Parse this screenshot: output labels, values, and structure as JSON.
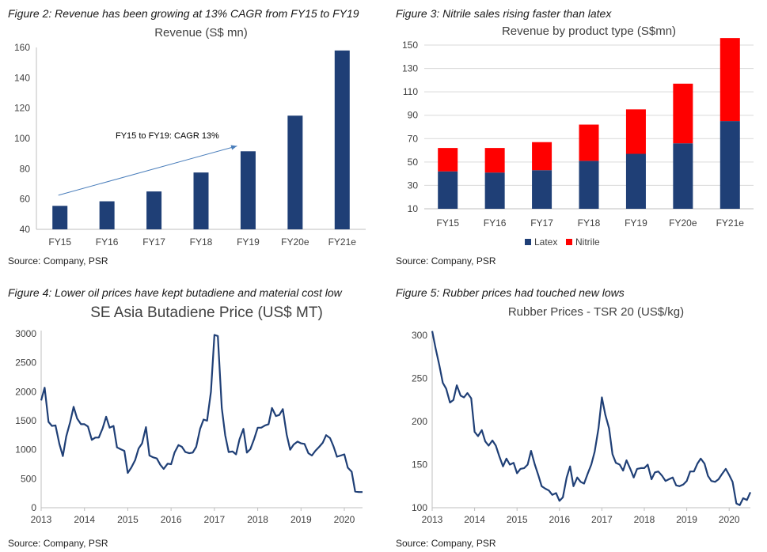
{
  "colors": {
    "navy": "#1f3f76",
    "red": "#ff0000",
    "axis": "#bfbfbf",
    "grid": "#d9d9d9",
    "arrow": "#4a7ebb"
  },
  "panels": [
    {
      "caption": "Figure 2: Revenue has been growing at 13% CAGR from FY15 to FY19",
      "source": "Source: Company, PSR"
    },
    {
      "caption": "Figure 3: Nitrile sales rising faster than latex",
      "source": "Source: Company, PSR"
    },
    {
      "caption": "Figure 4: Lower oil prices have kept butadiene and material cost low",
      "source": "Source: Company, PSR"
    },
    {
      "caption": "Figure 5: Rubber prices had touched new lows",
      "source": "Source: Company, PSR"
    }
  ],
  "chart_data": [
    {
      "type": "bar",
      "title": "Revenue (S$ mn)",
      "categories": [
        "FY15",
        "FY16",
        "FY17",
        "FY18",
        "FY19",
        "FY20e",
        "FY21e"
      ],
      "values": [
        55.5,
        58.5,
        65,
        77.5,
        91.5,
        115,
        158
      ],
      "ylim": [
        40,
        160
      ],
      "yticks": [
        "40",
        "60",
        "80",
        "100",
        "120",
        "140",
        "160"
      ],
      "grid": false,
      "annotation": "FY15 to FY19: CAGR 13%"
    },
    {
      "type": "bar",
      "stacked": true,
      "title": "Revenue by product type (S$mn)",
      "categories": [
        "FY15",
        "FY16",
        "FY17",
        "FY18",
        "FY19",
        "FY20e",
        "FY21e"
      ],
      "series": [
        {
          "name": "Latex",
          "values": [
            32,
            31,
            33,
            41,
            47,
            56,
            75
          ],
          "color": "#1f3f76"
        },
        {
          "name": "Nitrile",
          "values": [
            20,
            21,
            24,
            31,
            38,
            51,
            71
          ],
          "color": "#ff0000"
        }
      ],
      "ylim": [
        10,
        150
      ],
      "yticks": [
        "10",
        "30",
        "50",
        "70",
        "90",
        "110",
        "130",
        "150"
      ],
      "grid": true,
      "legend": "bottom"
    },
    {
      "type": "line",
      "title": "SE Asia Butadiene Price (US$  MT)",
      "x": [
        2013.0,
        2013.08,
        2013.17,
        2013.25,
        2013.33,
        2013.42,
        2013.5,
        2013.58,
        2013.67,
        2013.75,
        2013.83,
        2013.92,
        2014.0,
        2014.08,
        2014.17,
        2014.25,
        2014.33,
        2014.42,
        2014.5,
        2014.58,
        2014.67,
        2014.75,
        2014.83,
        2014.92,
        2015.0,
        2015.08,
        2015.17,
        2015.25,
        2015.33,
        2015.42,
        2015.5,
        2015.58,
        2015.67,
        2015.75,
        2015.83,
        2015.92,
        2016.0,
        2016.08,
        2016.17,
        2016.25,
        2016.33,
        2016.42,
        2016.5,
        2016.58,
        2016.67,
        2016.75,
        2016.83,
        2016.92,
        2017.0,
        2017.08,
        2017.17,
        2017.25,
        2017.33,
        2017.42,
        2017.5,
        2017.58,
        2017.67,
        2017.75,
        2017.83,
        2017.92,
        2018.0,
        2018.08,
        2018.17,
        2018.25,
        2018.33,
        2018.42,
        2018.5,
        2018.58,
        2018.67,
        2018.75,
        2018.83,
        2018.92,
        2019.0,
        2019.08,
        2019.17,
        2019.25,
        2019.33,
        2019.42,
        2019.5,
        2019.58,
        2019.67,
        2019.75,
        2019.83,
        2019.92,
        2020.0,
        2020.08,
        2020.17,
        2020.25,
        2020.33,
        2020.42
      ],
      "y": [
        1850,
        2070,
        1480,
        1410,
        1420,
        1100,
        890,
        1230,
        1480,
        1740,
        1540,
        1440,
        1440,
        1400,
        1170,
        1210,
        1210,
        1370,
        1570,
        1380,
        1410,
        1040,
        1010,
        980,
        600,
        690,
        820,
        1020,
        1110,
        1390,
        900,
        870,
        850,
        740,
        670,
        760,
        750,
        950,
        1080,
        1050,
        960,
        940,
        950,
        1050,
        1360,
        1520,
        1500,
        2000,
        2980,
        2960,
        1720,
        1250,
        960,
        970,
        920,
        1180,
        1360,
        950,
        1010,
        1190,
        1380,
        1380,
        1420,
        1440,
        1720,
        1580,
        1600,
        1700,
        1260,
        1000,
        1090,
        1140,
        1110,
        1100,
        940,
        900,
        980,
        1050,
        1120,
        1250,
        1200,
        1060,
        880,
        900,
        920,
        690,
        620,
        280,
        270,
        270
      ],
      "xlim": [
        2013,
        2020.42
      ],
      "ylim": [
        0,
        3000
      ],
      "xticks": [
        "2013",
        "2014",
        "2015",
        "2016",
        "2017",
        "2018",
        "2019",
        "2020"
      ],
      "yticks": [
        "0",
        "500",
        "1000",
        "1500",
        "2000",
        "2500",
        "3000"
      ],
      "grid": false
    },
    {
      "type": "line",
      "title": "Rubber Prices - TSR 20 (US$/kg)",
      "x": [
        2013.0,
        2013.08,
        2013.17,
        2013.25,
        2013.33,
        2013.42,
        2013.5,
        2013.58,
        2013.67,
        2013.75,
        2013.83,
        2013.92,
        2014.0,
        2014.08,
        2014.17,
        2014.25,
        2014.33,
        2014.42,
        2014.5,
        2014.58,
        2014.67,
        2014.75,
        2014.83,
        2014.92,
        2015.0,
        2015.08,
        2015.17,
        2015.25,
        2015.33,
        2015.42,
        2015.5,
        2015.58,
        2015.67,
        2015.75,
        2015.83,
        2015.92,
        2016.0,
        2016.08,
        2016.17,
        2016.25,
        2016.33,
        2016.42,
        2016.5,
        2016.58,
        2016.67,
        2016.75,
        2016.83,
        2016.92,
        2017.0,
        2017.08,
        2017.17,
        2017.25,
        2017.33,
        2017.42,
        2017.5,
        2017.58,
        2017.67,
        2017.75,
        2017.83,
        2017.92,
        2018.0,
        2018.08,
        2018.17,
        2018.25,
        2018.33,
        2018.42,
        2018.5,
        2018.58,
        2018.67,
        2018.75,
        2018.83,
        2018.92,
        2019.0,
        2019.08,
        2019.17,
        2019.25,
        2019.33,
        2019.42,
        2019.5,
        2019.58,
        2019.67,
        2019.75,
        2019.83,
        2019.92,
        2020.0,
        2020.08,
        2020.17,
        2020.25,
        2020.33,
        2020.42,
        2020.5
      ],
      "y": [
        305,
        285,
        265,
        245,
        238,
        222,
        225,
        242,
        230,
        228,
        233,
        227,
        188,
        183,
        190,
        177,
        172,
        178,
        172,
        160,
        148,
        157,
        150,
        152,
        140,
        145,
        146,
        150,
        166,
        150,
        138,
        125,
        122,
        120,
        115,
        117,
        108,
        112,
        135,
        148,
        125,
        135,
        130,
        128,
        140,
        150,
        165,
        192,
        228,
        208,
        192,
        162,
        152,
        150,
        143,
        155,
        145,
        135,
        145,
        146,
        146,
        150,
        133,
        141,
        142,
        137,
        131,
        133,
        135,
        126,
        125,
        127,
        131,
        142,
        142,
        151,
        157,
        151,
        137,
        131,
        130,
        133,
        139,
        145,
        138,
        130,
        105,
        103,
        111,
        109,
        118
      ],
      "xlim": [
        2013,
        2020.5
      ],
      "ylim": [
        100,
        300
      ],
      "xticks": [
        "2013",
        "2014",
        "2015",
        "2016",
        "2017",
        "2018",
        "2019",
        "2020"
      ],
      "yticks": [
        "100",
        "150",
        "200",
        "250",
        "300"
      ],
      "grid": false
    }
  ]
}
